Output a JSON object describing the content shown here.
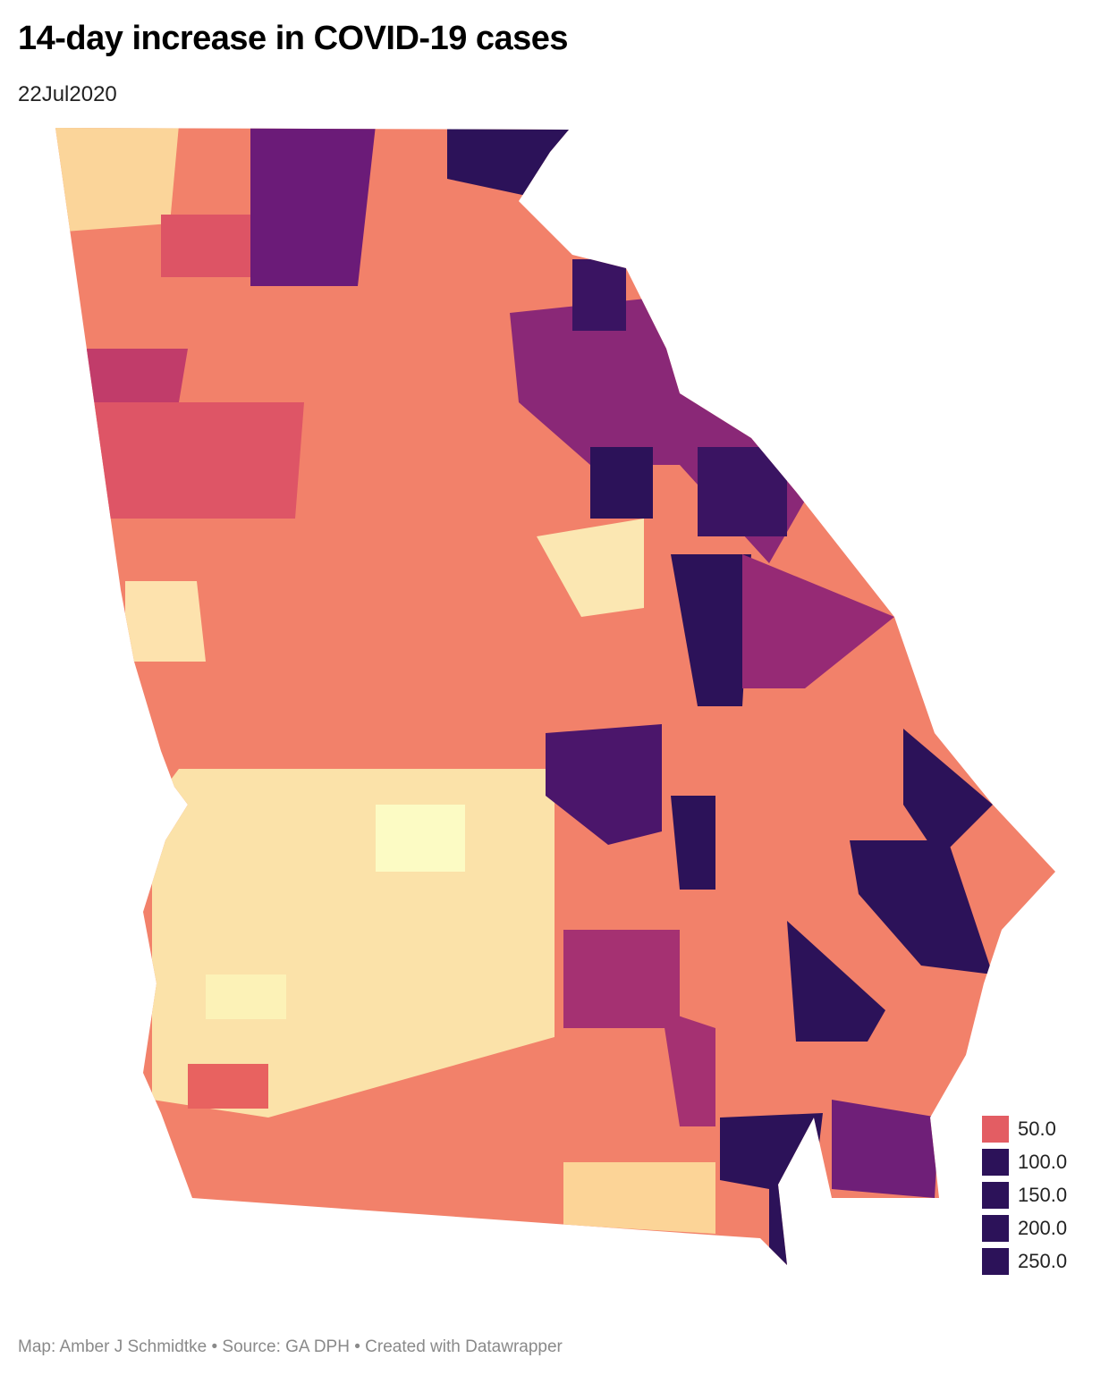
{
  "header": {
    "title": "14-day increase in COVID-19 cases",
    "subtitle": "22Jul2020"
  },
  "legend": [
    {
      "label": "50.0",
      "color": "#e35d63"
    },
    {
      "label": "100.0",
      "color": "#2c1259"
    },
    {
      "label": "150.0",
      "color": "#2c1259"
    },
    {
      "label": "200.0",
      "color": "#2c1259"
    },
    {
      "label": "250.0",
      "color": "#2c1259"
    }
  ],
  "footer": "Map: Amber J Schmidtke • Source: GA DPH • Created with Datawrapper"
}
